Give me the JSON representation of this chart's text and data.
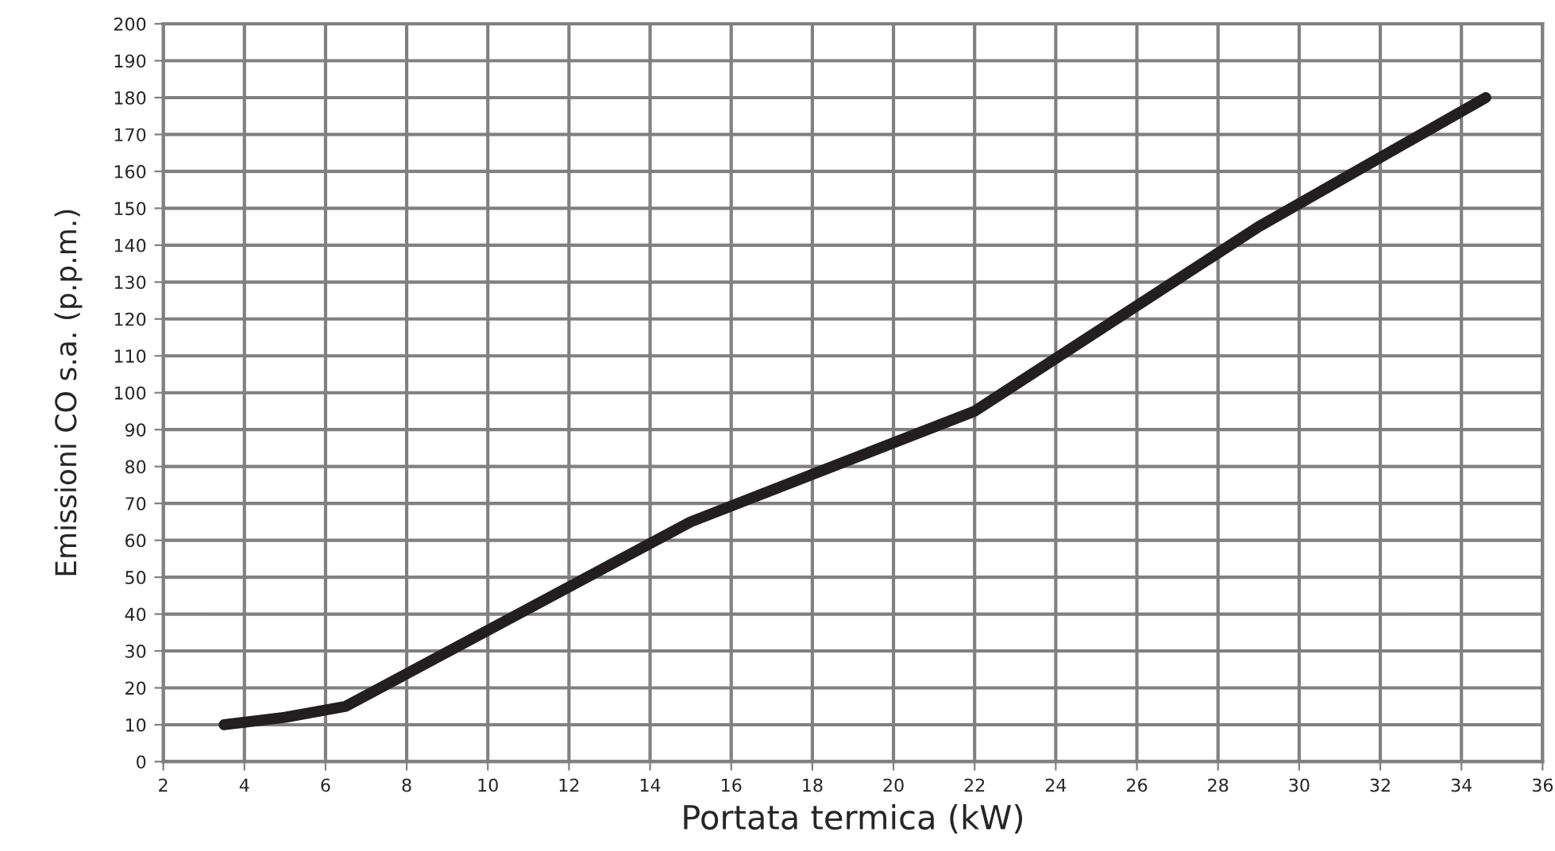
{
  "chart_data": {
    "type": "line",
    "xlabel": "Portata termica (kW)",
    "ylabel": "Emissioni CO s.a. (p.p.m.)",
    "x": [
      3.5,
      5,
      6.5,
      15,
      22,
      29,
      34.6
    ],
    "series": [
      {
        "color": "#231f20",
        "values": [
          10,
          12,
          15,
          65,
          95,
          145,
          180
        ]
      }
    ],
    "xlim": [
      2,
      36
    ],
    "xticks": [
      2,
      4,
      6,
      8,
      10,
      12,
      14,
      16,
      18,
      20,
      22,
      24,
      26,
      28,
      30,
      32,
      34,
      36
    ],
    "ylim": [
      0,
      200
    ],
    "yticks": [
      0,
      10,
      20,
      30,
      40,
      50,
      60,
      70,
      80,
      90,
      100,
      110,
      120,
      130,
      140,
      150,
      160,
      170,
      180,
      190,
      200
    ],
    "grid": true,
    "marker": "none",
    "line_style": "solid"
  }
}
